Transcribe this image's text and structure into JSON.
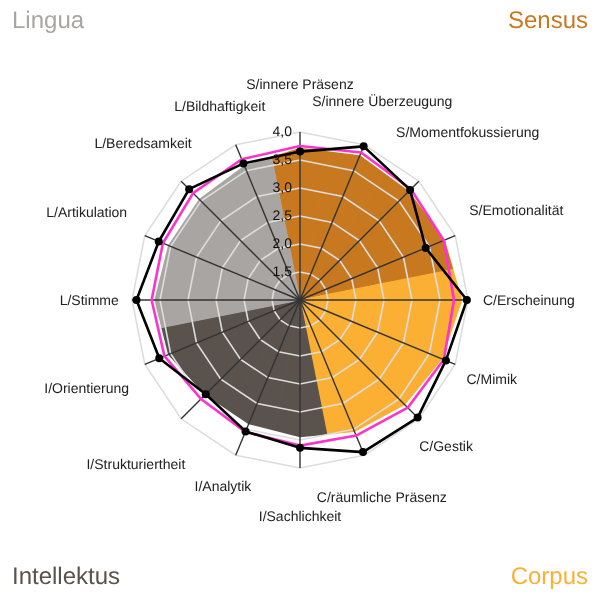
{
  "chart_data": {
    "type": "radar",
    "categories": [
      "S/innere Präsenz",
      "S/innere Überzeugung",
      "S/Momentfokussierung",
      "S/Emotionalität",
      "C/Erscheinung",
      "C/Mimik",
      "C/Gestik",
      "C/räumliche Präsenz",
      "I/Sachlichkeit",
      "I/Analytik",
      "I/Strukturiertheit",
      "I/Orientierung",
      "L/Stimme",
      "L/Artikulation",
      "L/Beredsamkeit",
      "L/Bildhaftigkeit"
    ],
    "series": [
      {
        "colors": [
          "#c8791f",
          "#c8791f",
          "#c8791f",
          "#c8791f",
          "#fbb034",
          "#fbb034",
          "#fbb034",
          "#fbb034",
          "#5a524c",
          "#5a524c",
          "#5a524c",
          "#5a524c",
          "#a9a5a2",
          "#a9a5a2",
          "#a9a5a2",
          "#a9a5a2"
        ],
        "values": [
          3.72,
          3.8,
          3.75,
          3.8,
          3.9,
          3.75,
          3.65,
          3.55,
          3.45,
          3.4,
          3.4,
          3.55,
          3.6,
          3.55,
          3.55,
          3.6
        ]
      },
      {
        "color": "#ff33cc",
        "marker": "none",
        "values": [
          3.75,
          3.85,
          3.8,
          3.78,
          3.75,
          3.78,
          3.72,
          3.62,
          3.6,
          3.55,
          3.5,
          3.62,
          3.65,
          3.65,
          3.7,
          3.72
        ]
      },
      {
        "color": "#000000",
        "marker": "circle",
        "values": [
          3.65,
          3.97,
          3.78,
          3.43,
          3.98,
          3.82,
          3.97,
          3.94,
          3.64,
          3.54,
          3.38,
          3.72,
          3.92,
          3.73,
          3.8,
          3.64
        ]
      }
    ],
    "ylim": [
      1,
      4
    ],
    "yticks": [
      {
        "value": 1.5,
        "label": "1,5"
      },
      {
        "value": 2,
        "label": "2,0"
      },
      {
        "value": 2.5,
        "label": "2,5"
      },
      {
        "value": 3,
        "label": "3,0"
      },
      {
        "value": 3.5,
        "label": "3,5"
      },
      {
        "value": 4,
        "label": "4,0"
      }
    ],
    "grid": true,
    "annotations": [
      "Lingua",
      "Sensus",
      "Corpus",
      "Intellektus"
    ]
  }
}
